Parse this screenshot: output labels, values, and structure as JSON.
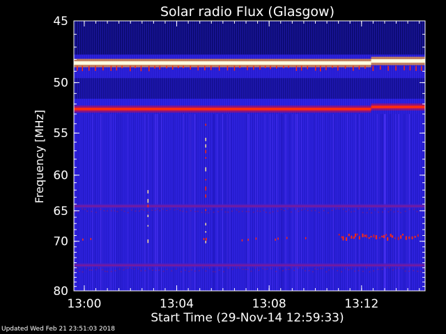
{
  "chart_data": {
    "type": "heatmap",
    "title": "Solar radio Flux (Glasgow)",
    "xlabel": "Start Time (29-Nov-14 12:59:33)",
    "ylabel": "Frequency [MHz]",
    "x_ticks": [
      "13:00",
      "13:04",
      "13:08",
      "13:12"
    ],
    "y_ticks": [
      "45",
      "50",
      "55",
      "60",
      "65",
      "70",
      "80"
    ],
    "xlim": [
      "12:59:33",
      "13:14:45"
    ],
    "ylim": [
      45,
      80
    ],
    "y_scale": "reciprocal",
    "grid": false,
    "colors": {
      "background": "#000000",
      "low": "#2a1fd6",
      "mid": "#5a3aff",
      "high": "#ff2a10",
      "peak": "#ffffe0"
    },
    "features": [
      {
        "kind": "horizontal-band",
        "freq_mhz": 48.3,
        "intensity": "peak"
      },
      {
        "kind": "horizontal-band",
        "freq_mhz": 52.5,
        "intensity": "high"
      },
      {
        "kind": "horizontal-band",
        "freq_mhz": 64.3,
        "intensity": "medium"
      },
      {
        "kind": "horizontal-band",
        "freq_mhz": 74.5,
        "intensity": "medium"
      },
      {
        "kind": "burst-cluster",
        "time_start": "13:11:00",
        "time_end": "13:14:30",
        "freq_mhz": 69.0,
        "intensity": "high"
      },
      {
        "kind": "vertical-spike",
        "time": "13:05:15",
        "freq_mhz_start": 54.0,
        "freq_mhz_end": 70.0,
        "intensity": "medium"
      },
      {
        "kind": "vertical-spike",
        "time": "13:02:45",
        "freq_mhz_start": 62.0,
        "freq_mhz_end": 70.0,
        "intensity": "medium"
      },
      {
        "kind": "band-shift",
        "time": "13:12:25"
      }
    ]
  },
  "footer": {
    "updated": "Updated Wed Feb 21 23:51:03 2018"
  }
}
